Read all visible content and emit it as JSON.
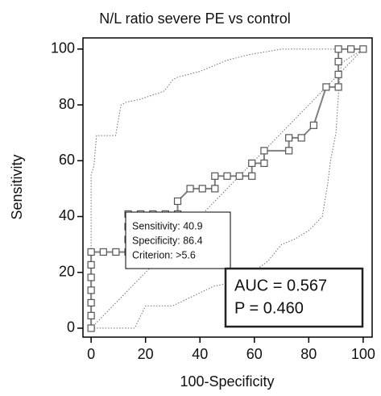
{
  "chart_data": {
    "type": "line",
    "title": "N/L ratio severe  PE vs control",
    "x_label": "100-Specificity",
    "y_label": "Sensitivity",
    "xlim": [
      -3,
      103.3
    ],
    "ylim": [
      -3.2,
      104
    ],
    "xticks": [
      0,
      20,
      40,
      60,
      80,
      100
    ],
    "yticks": [
      0,
      20,
      40,
      60,
      80,
      100
    ],
    "series": [
      {
        "color": "#808080",
        "dash": false,
        "markers": "square",
        "x": [
          0,
          0,
          0,
          0,
          0,
          0,
          0,
          4.5,
          9.1,
          13.6,
          13.6,
          13.6,
          13.6,
          18.2,
          22.7,
          27.3,
          31.8,
          31.8,
          36.4,
          40.9,
          45.5,
          45.5,
          50,
          54.5,
          59.1,
          59.1,
          63.6,
          63.6,
          72.7,
          72.7,
          77.3,
          81.8,
          86.4,
          90.9,
          90.9,
          90.9,
          90.9,
          95.5,
          100
        ],
        "values": [
          0,
          4.5,
          9.1,
          13.6,
          18.2,
          22.7,
          27.3,
          27.3,
          27.3,
          27.3,
          31.8,
          36.4,
          40.9,
          40.9,
          40.9,
          40.9,
          40.9,
          45.5,
          50,
          50,
          50,
          54.5,
          54.5,
          54.5,
          54.5,
          59.1,
          59.1,
          63.6,
          63.6,
          68.2,
          68.2,
          72.7,
          86.4,
          86.4,
          90.9,
          95.5,
          100,
          100,
          100
        ]
      },
      {
        "color": "#707070",
        "dash": true,
        "markers": "none",
        "x": [
          0,
          0,
          1,
          2,
          9,
          11,
          13,
          18,
          27,
          30,
          32,
          40,
          45,
          50,
          58,
          70,
          100
        ],
        "values": [
          0,
          55,
          58,
          69,
          69,
          80,
          81,
          82,
          85,
          89,
          90,
          92,
          94,
          96,
          98,
          100,
          100
        ]
      },
      {
        "color": "#707070",
        "dash": true,
        "markers": "none",
        "x": [
          0,
          16,
          20,
          30,
          45,
          55,
          65,
          70,
          75,
          80,
          85,
          87,
          88,
          90,
          91,
          92,
          100
        ],
        "values": [
          0,
          0,
          8,
          8,
          15,
          17,
          24,
          30,
          32,
          35,
          40,
          52,
          60,
          70,
          85,
          95,
          100
        ]
      },
      {
        "color": "#707070",
        "dash": true,
        "markers": "none",
        "x": [
          0,
          100
        ],
        "values": [
          0,
          100
        ]
      }
    ],
    "annotations": [
      [
        "Sensitivity: 40.9",
        "Specificity: 86.4",
        "Criterion: >5.6"
      ],
      [
        "AUC = 0.567",
        "P = 0.460"
      ]
    ]
  }
}
